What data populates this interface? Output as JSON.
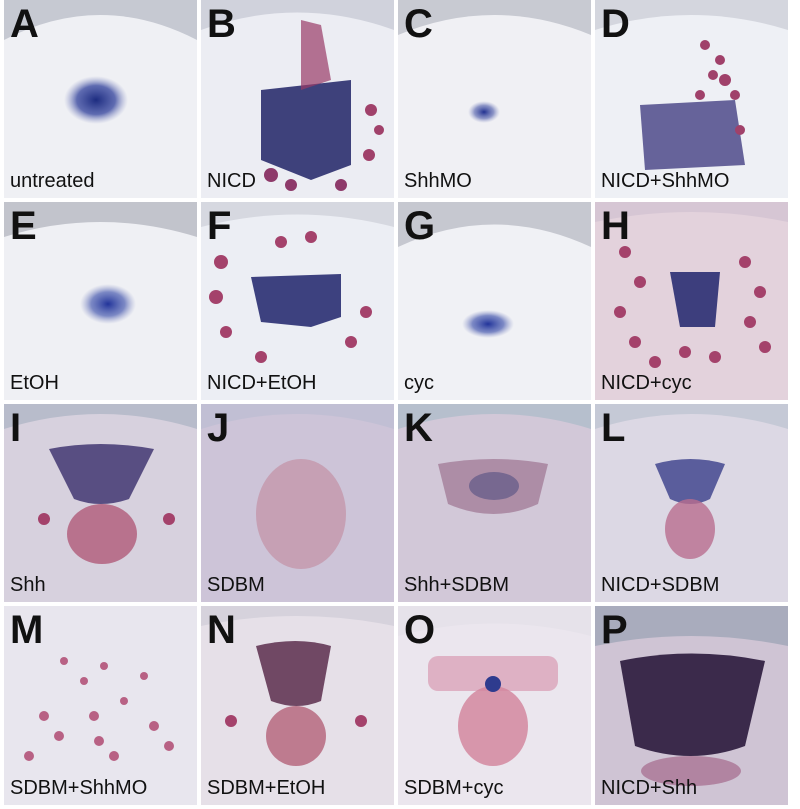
{
  "panels": [
    {
      "letter": "A",
      "caption": "untreated",
      "style": "row1"
    },
    {
      "letter": "B",
      "caption": "NICD",
      "style": "row1"
    },
    {
      "letter": "C",
      "caption": "ShhMO",
      "style": "row1"
    },
    {
      "letter": "D",
      "caption": "NICD+ShhMO",
      "style": "row1"
    },
    {
      "letter": "E",
      "caption": "EtOH",
      "style": "row1"
    },
    {
      "letter": "F",
      "caption": "NICD+EtOH",
      "style": "row1"
    },
    {
      "letter": "G",
      "caption": "cyc",
      "style": "row1"
    },
    {
      "letter": "H",
      "caption": "NICD+cyc",
      "style": "row1"
    },
    {
      "letter": "I",
      "caption": "Shh",
      "style": "row3"
    },
    {
      "letter": "J",
      "caption": "SDBM",
      "style": "row3"
    },
    {
      "letter": "K",
      "caption": "Shh+SDBM",
      "style": "row3"
    },
    {
      "letter": "L",
      "caption": "NICD+SDBM",
      "style": "row3"
    },
    {
      "letter": "M",
      "caption": "SDBM+ShhMO",
      "style": "row4"
    },
    {
      "letter": "N",
      "caption": "SDBM+EtOH",
      "style": "row4"
    },
    {
      "letter": "O",
      "caption": "SDBM+cyc",
      "style": "row4"
    },
    {
      "letter": "P",
      "caption": "NICD+Shh",
      "style": "row4"
    }
  ],
  "colors": {
    "blue_stain": "#1f2f86",
    "red_stain": "#9b3557",
    "tissue_light": "#eeeff4",
    "tissue_purple": "#c9c2d8"
  }
}
